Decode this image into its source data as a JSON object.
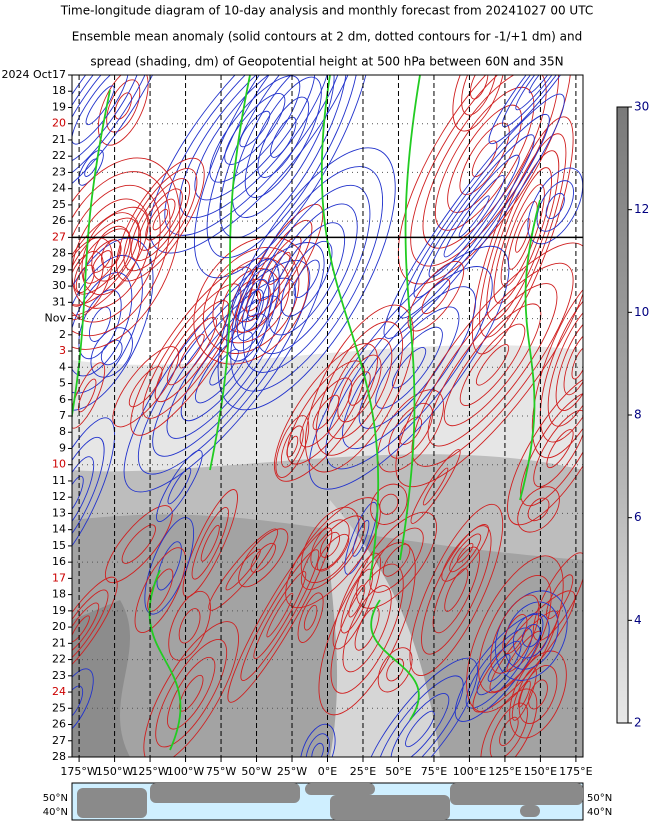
{
  "title_lines": [
    "Time-longitude diagram of 10-day analysis and monthly forecast from 20241027 00 UTC",
    "Ensemble mean anomaly (solid contours at 2 dm, dotted contours for -1/+1 dm) and",
    "spread (shading, dm) of Geopotential height at 500 hPa between 60N and 35N"
  ],
  "chart_data": {
    "type": "hovmoller",
    "xlim": [
      -180,
      180
    ],
    "xticks": [
      {
        "value": -175,
        "label": "175°W"
      },
      {
        "value": -150,
        "label": "150°W"
      },
      {
        "value": -125,
        "label": "125°W"
      },
      {
        "value": -100,
        "label": "100°W"
      },
      {
        "value": -75,
        "label": "75°W"
      },
      {
        "value": -50,
        "label": "50°W"
      },
      {
        "value": -25,
        "label": "25°W"
      },
      {
        "value": 0,
        "label": "0°E"
      },
      {
        "value": 25,
        "label": "25°E"
      },
      {
        "value": 50,
        "label": "50°E"
      },
      {
        "value": 75,
        "label": "75°E"
      },
      {
        "value": 100,
        "label": "100°E"
      },
      {
        "value": 125,
        "label": "125°E"
      },
      {
        "value": 150,
        "label": "150°E"
      },
      {
        "value": 175,
        "label": "175°E"
      }
    ],
    "y_labels": [
      {
        "label": "2024 Oct17"
      },
      {
        "label": "18"
      },
      {
        "label": "19"
      },
      {
        "label": "20",
        "color": "#cc0000"
      },
      {
        "label": "21"
      },
      {
        "label": "22"
      },
      {
        "label": "23"
      },
      {
        "label": "24"
      },
      {
        "label": "25"
      },
      {
        "label": "26"
      },
      {
        "label": "27",
        "color": "#cc0000",
        "forecast_start": true
      },
      {
        "label": "28"
      },
      {
        "label": "29"
      },
      {
        "label": "30"
      },
      {
        "label": "31"
      },
      {
        "label": "Nov"
      },
      {
        "label": "2"
      },
      {
        "label": "3",
        "color": "#cc0000"
      },
      {
        "label": "4"
      },
      {
        "label": "5"
      },
      {
        "label": "6"
      },
      {
        "label": "7"
      },
      {
        "label": "8"
      },
      {
        "label": "9"
      },
      {
        "label": "10",
        "color": "#cc0000"
      },
      {
        "label": "11"
      },
      {
        "label": "12"
      },
      {
        "label": "13"
      },
      {
        "label": "14"
      },
      {
        "label": "15"
      },
      {
        "label": "16"
      },
      {
        "label": "17",
        "color": "#cc0000"
      },
      {
        "label": "18"
      },
      {
        "label": "19"
      },
      {
        "label": "20"
      },
      {
        "label": "21"
      },
      {
        "label": "22"
      },
      {
        "label": "23"
      },
      {
        "label": "24",
        "color": "#cc0000"
      },
      {
        "label": "25"
      },
      {
        "label": "26"
      },
      {
        "label": "27"
      },
      {
        "label": "28"
      }
    ],
    "colorbar_ticks": [
      2,
      4,
      6,
      8,
      10,
      12,
      30
    ],
    "map_labels": [
      "50°N",
      "40°N"
    ]
  }
}
